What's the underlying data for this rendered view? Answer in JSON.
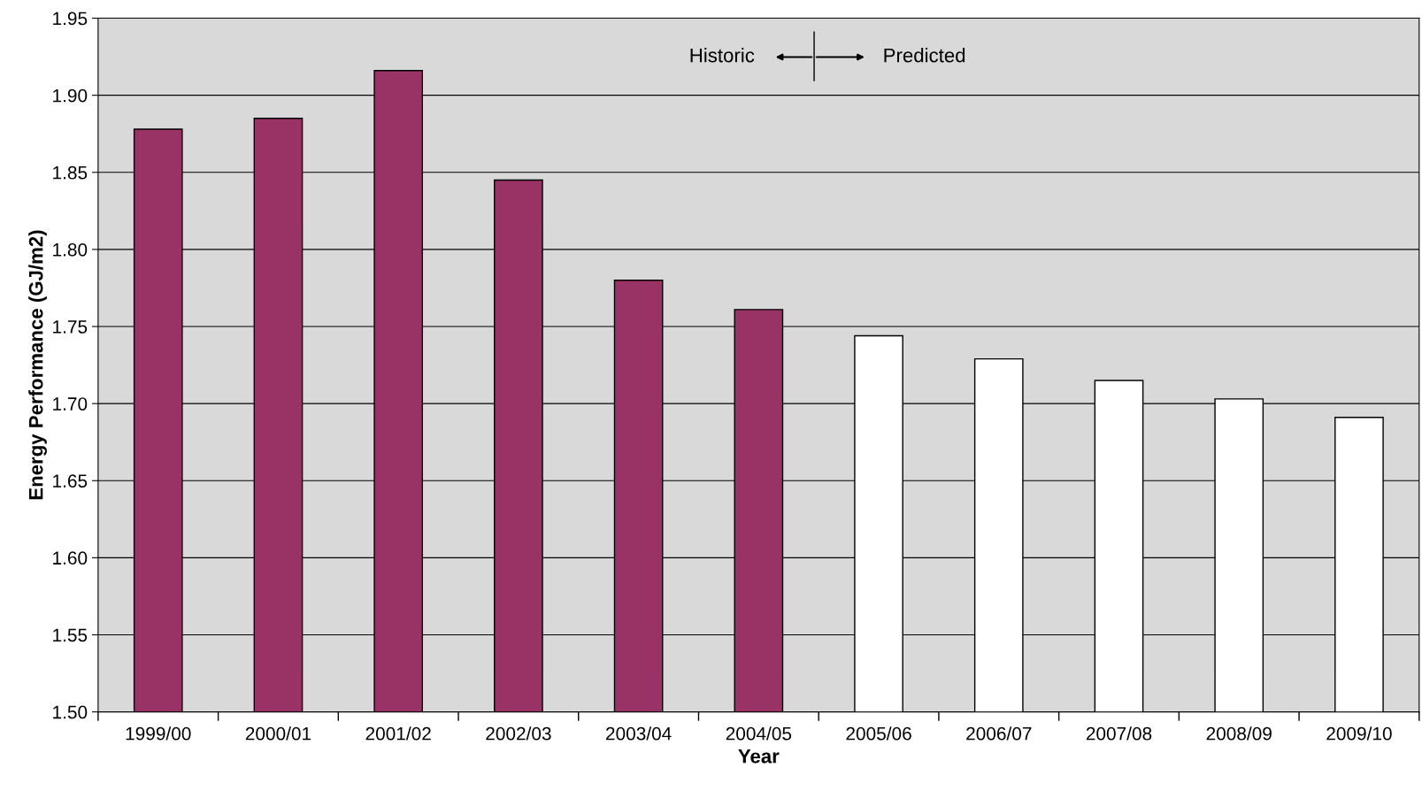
{
  "chart_data": {
    "type": "bar",
    "xlabel": "Year",
    "ylabel": "Energy Performance (GJ/m2)",
    "categories": [
      "1999/00",
      "2000/01",
      "2001/02",
      "2002/03",
      "2003/04",
      "2004/05",
      "2005/06",
      "2006/07",
      "2007/08",
      "2008/09",
      "2009/10"
    ],
    "values": [
      1.878,
      1.885,
      1.916,
      1.845,
      1.78,
      1.761,
      1.744,
      1.729,
      1.715,
      1.703,
      1.691
    ],
    "colors": [
      "#993366",
      "#993366",
      "#993366",
      "#993366",
      "#993366",
      "#993366",
      "#ffffff",
      "#ffffff",
      "#ffffff",
      "#ffffff",
      "#ffffff"
    ],
    "ylim": [
      1.5,
      1.95
    ],
    "yticks": [
      {
        "value": 1.5,
        "label": "1.50"
      },
      {
        "value": 1.55,
        "label": "1.55"
      },
      {
        "value": 1.6,
        "label": "1.60"
      },
      {
        "value": 1.65,
        "label": "1.65"
      },
      {
        "value": 1.7,
        "label": "1.70"
      },
      {
        "value": 1.75,
        "label": "1.75"
      },
      {
        "value": 1.8,
        "label": "1.80"
      },
      {
        "value": 1.85,
        "label": "1.85"
      },
      {
        "value": 1.9,
        "label": "1.90"
      },
      {
        "value": 1.95,
        "label": "1.95"
      }
    ],
    "grid": "y",
    "annotations": [
      "Historic",
      "Predicted"
    ]
  }
}
